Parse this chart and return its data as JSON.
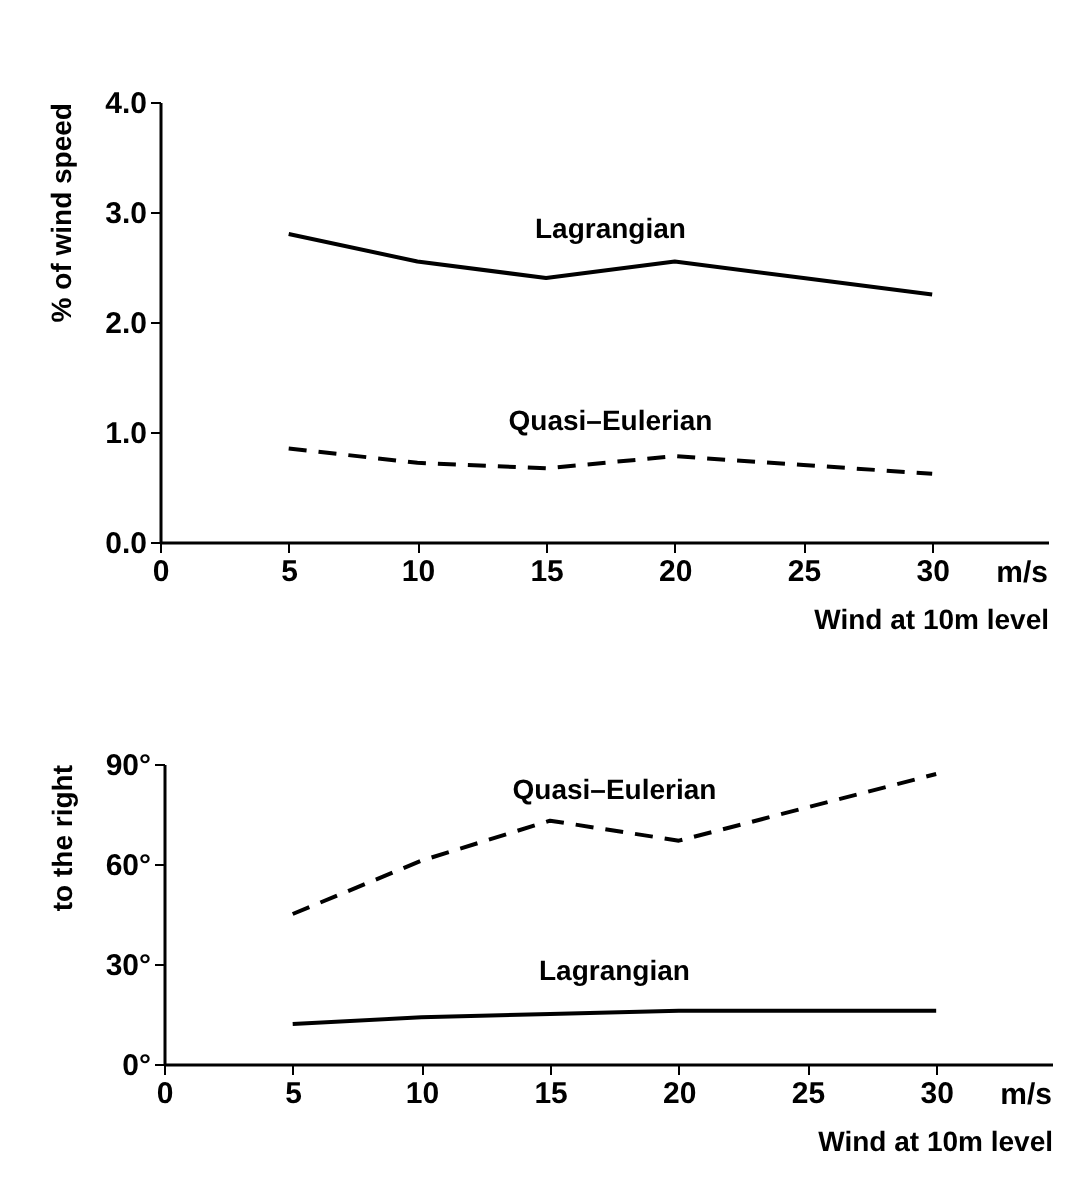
{
  "chart_data": [
    {
      "type": "line",
      "ylabel": "% of wind speed",
      "xlabel": "Wind at 10m level",
      "annotations": [
        "m/s"
      ],
      "x": [
        5,
        10,
        15,
        20,
        25,
        30
      ],
      "xlim": [
        0,
        34.5
      ],
      "xticks": [
        0,
        5,
        10,
        15,
        20,
        25,
        30
      ],
      "ylim": [
        0,
        4
      ],
      "yticks": [
        {
          "value": 0,
          "label": "0.0"
        },
        {
          "value": 1,
          "label": "1.0"
        },
        {
          "value": 2,
          "label": "2.0"
        },
        {
          "value": 3,
          "label": "3.0"
        },
        {
          "value": 4,
          "label": "4.0"
        }
      ],
      "series": [
        {
          "name": "Lagrangian",
          "color": "#000000",
          "line_style": "solid",
          "values": [
            2.8,
            2.55,
            2.4,
            2.55,
            2.4,
            2.25
          ]
        },
        {
          "name": "Quasi–Eulerian",
          "color": "#000000",
          "line_style": "dashed",
          "values": [
            0.85,
            0.72,
            0.67,
            0.78,
            0.7,
            0.62
          ]
        }
      ]
    },
    {
      "type": "line",
      "ylabel": "to the right",
      "xlabel": "Wind at 10m level",
      "annotations": [
        "m/s"
      ],
      "x": [
        5,
        10,
        15,
        20,
        25,
        30
      ],
      "xlim": [
        0,
        34.5
      ],
      "xticks": [
        0,
        5,
        10,
        15,
        20,
        25,
        30
      ],
      "ylim": [
        0,
        90
      ],
      "yticks": [
        {
          "value": 0,
          "label": "0°"
        },
        {
          "value": 30,
          "label": "30°"
        },
        {
          "value": 60,
          "label": "60°"
        },
        {
          "value": 90,
          "label": "90°"
        }
      ],
      "series": [
        {
          "name": "Quasi–Eulerian",
          "color": "#000000",
          "line_style": "dashed",
          "values": [
            45,
            61,
            73,
            67,
            77,
            87
          ]
        },
        {
          "name": "Lagrangian",
          "color": "#000000",
          "line_style": "solid",
          "values": [
            12,
            14,
            15,
            16,
            16,
            16
          ]
        }
      ]
    }
  ]
}
